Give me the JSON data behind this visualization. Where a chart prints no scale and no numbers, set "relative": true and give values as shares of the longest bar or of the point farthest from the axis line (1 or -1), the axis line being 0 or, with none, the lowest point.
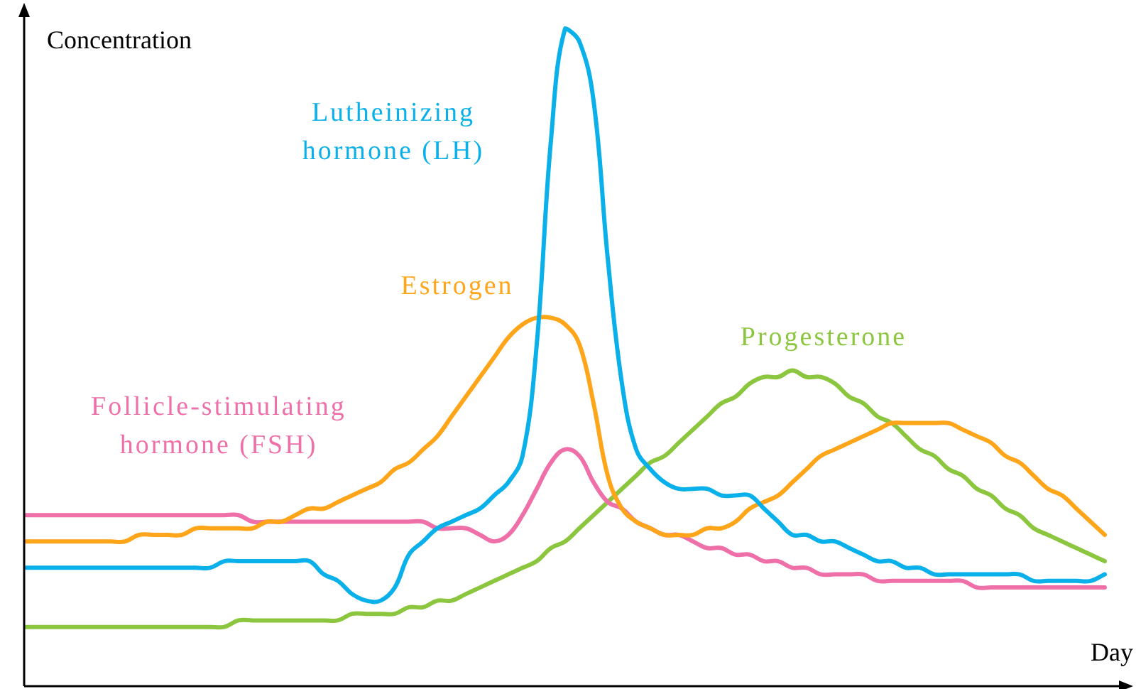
{
  "chart_data": {
    "type": "line",
    "xlabel": "Day",
    "ylabel": "Concentration",
    "relative": true,
    "legend": false,
    "marker": "none",
    "line_style": "solid",
    "categories": [
      null,
      null,
      null,
      null,
      null,
      null,
      null,
      null,
      null,
      null,
      null,
      null,
      null,
      null,
      null,
      null,
      null,
      null,
      null,
      null,
      null,
      null,
      null,
      null,
      null,
      null,
      null,
      null,
      null,
      null,
      null,
      null,
      null,
      null,
      null,
      null,
      null,
      null,
      null,
      null,
      null,
      null,
      null,
      null,
      null,
      null,
      null,
      null,
      null,
      null,
      null,
      null,
      null,
      null,
      null,
      null,
      null,
      null,
      null,
      null,
      null,
      null,
      null,
      null,
      null,
      null,
      null,
      null,
      null,
      null,
      null,
      null,
      null,
      null,
      null,
      null,
      null
    ],
    "series": [
      {
        "name": "Lutheinizing hormone (LH)",
        "color": "#0ab0ea",
        "values": [
          0.18,
          0.18,
          0.18,
          0.18,
          0.18,
          0.18,
          0.18,
          0.18,
          0.18,
          0.18,
          0.18,
          0.18,
          0.18,
          0.18,
          0.19,
          0.19,
          0.19,
          0.19,
          0.19,
          0.19,
          0.19,
          0.17,
          0.16,
          0.14,
          0.13,
          0.13,
          0.15,
          0.2,
          0.22,
          0.24,
          0.25,
          0.26,
          0.27,
          0.29,
          0.31,
          0.35,
          0.52,
          0.83,
          1,
          0.98,
          0.89,
          0.65,
          0.46,
          0.36,
          0.33,
          0.31,
          0.3,
          0.3,
          0.3,
          0.29,
          0.29,
          0.29,
          0.27,
          0.25,
          0.23,
          0.23,
          0.22,
          0.22,
          0.21,
          0.2,
          0.19,
          0.19,
          0.18,
          0.18,
          0.17,
          0.17,
          0.17,
          0.17,
          0.17,
          0.17,
          0.17,
          0.16,
          0.16,
          0.16,
          0.16,
          0.16,
          0.17
        ]
      },
      {
        "name": "Estrogen",
        "color": "#ffa51a",
        "values": [
          0.22,
          0.22,
          0.22,
          0.22,
          0.22,
          0.22,
          0.22,
          0.22,
          0.23,
          0.23,
          0.23,
          0.23,
          0.24,
          0.24,
          0.24,
          0.24,
          0.24,
          0.25,
          0.25,
          0.26,
          0.27,
          0.27,
          0.28,
          0.29,
          0.3,
          0.31,
          0.33,
          0.34,
          0.36,
          0.38,
          0.41,
          0.44,
          0.47,
          0.5,
          0.53,
          0.55,
          0.56,
          0.56,
          0.55,
          0.52,
          0.43,
          0.32,
          0.27,
          0.25,
          0.24,
          0.23,
          0.23,
          0.23,
          0.24,
          0.24,
          0.25,
          0.27,
          0.28,
          0.29,
          0.31,
          0.33,
          0.35,
          0.36,
          0.37,
          0.38,
          0.39,
          0.4,
          0.4,
          0.4,
          0.4,
          0.4,
          0.39,
          0.38,
          0.37,
          0.35,
          0.34,
          0.32,
          0.3,
          0.29,
          0.27,
          0.25,
          0.23
        ]
      },
      {
        "name": "Follicle-stimulating hormone (FSH)",
        "color": "#ef6fa8",
        "values": [
          0.26,
          0.26,
          0.26,
          0.26,
          0.26,
          0.26,
          0.26,
          0.26,
          0.26,
          0.26,
          0.26,
          0.26,
          0.26,
          0.26,
          0.26,
          0.26,
          0.25,
          0.25,
          0.25,
          0.25,
          0.25,
          0.25,
          0.25,
          0.25,
          0.25,
          0.25,
          0.25,
          0.25,
          0.25,
          0.24,
          0.24,
          0.24,
          0.23,
          0.22,
          0.23,
          0.26,
          0.3,
          0.34,
          0.36,
          0.35,
          0.31,
          0.28,
          0.27,
          0.25,
          0.24,
          0.23,
          0.23,
          0.22,
          0.21,
          0.21,
          0.2,
          0.2,
          0.19,
          0.19,
          0.18,
          0.18,
          0.17,
          0.17,
          0.17,
          0.17,
          0.16,
          0.16,
          0.16,
          0.16,
          0.16,
          0.16,
          0.16,
          0.15,
          0.15,
          0.15,
          0.15,
          0.15,
          0.15,
          0.15,
          0.15,
          0.15,
          0.15
        ]
      },
      {
        "name": "Progesterone",
        "color": "#8cc63f",
        "values": [
          0.09,
          0.09,
          0.09,
          0.09,
          0.09,
          0.09,
          0.09,
          0.09,
          0.09,
          0.09,
          0.09,
          0.09,
          0.09,
          0.09,
          0.09,
          0.1,
          0.1,
          0.1,
          0.1,
          0.1,
          0.1,
          0.1,
          0.1,
          0.11,
          0.11,
          0.11,
          0.11,
          0.12,
          0.12,
          0.13,
          0.13,
          0.14,
          0.15,
          0.16,
          0.17,
          0.18,
          0.19,
          0.21,
          0.22,
          0.24,
          0.26,
          0.28,
          0.3,
          0.32,
          0.34,
          0.35,
          0.37,
          0.39,
          0.41,
          0.43,
          0.44,
          0.46,
          0.47,
          0.47,
          0.48,
          0.47,
          0.47,
          0.46,
          0.44,
          0.43,
          0.41,
          0.4,
          0.38,
          0.36,
          0.35,
          0.33,
          0.32,
          0.3,
          0.29,
          0.27,
          0.26,
          0.24,
          0.23,
          0.22,
          0.21,
          0.2,
          0.19
        ]
      }
    ]
  }
}
